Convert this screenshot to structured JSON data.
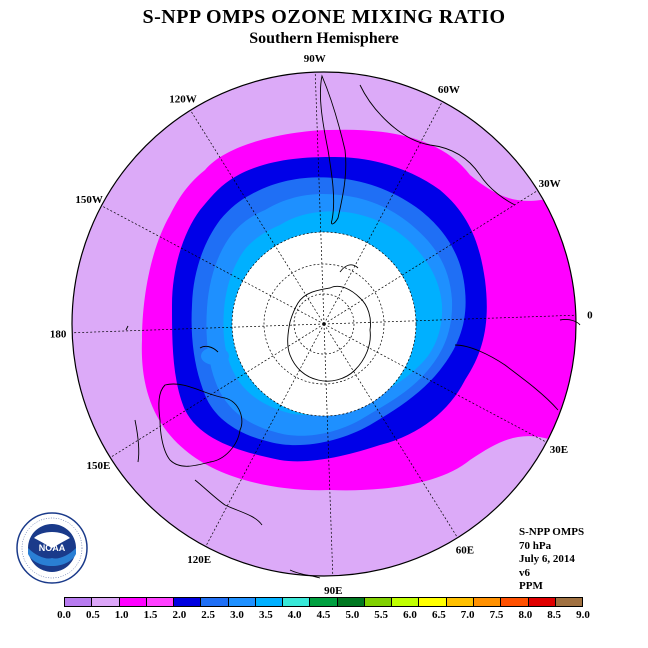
{
  "title": "S-NPP OMPS OZONE MIXING RATIO",
  "subtitle": "Southern Hemisphere",
  "map": {
    "projection": "south-polar-stereographic",
    "longitude_labels": [
      {
        "text": "90W",
        "lon": -90
      },
      {
        "text": "60W",
        "lon": -60
      },
      {
        "text": "30W",
        "lon": -30
      },
      {
        "text": "0",
        "lon": 0
      },
      {
        "text": "30E",
        "lon": 30
      },
      {
        "text": "60E",
        "lon": 60
      },
      {
        "text": "90E",
        "lon": 90
      },
      {
        "text": "120E",
        "lon": 120
      },
      {
        "text": "150E",
        "lon": 150
      },
      {
        "text": "180",
        "lon": 180
      },
      {
        "text": "150W",
        "lon": -150
      },
      {
        "text": "120W",
        "lon": -120
      }
    ]
  },
  "info": {
    "line1": "S-NPP OMPS",
    "line2": "70 hPa",
    "line3": "July 6, 2014",
    "line4": "v6",
    "line5": "PPM"
  },
  "logo": {
    "text": "NOAA",
    "ring_text": "NATIONAL OCEANIC AND ATMOSPHERIC ADMINISTRATION · U.S. DEPARTMENT OF COMMERCE"
  },
  "colorbar": {
    "colors": [
      "#b87cf0",
      "#dca6f8",
      "#ff00ff",
      "#ff40ff",
      "#0000e0",
      "#1f6ff5",
      "#1e90ff",
      "#00b0ff",
      "#38e8d8",
      "#00a040",
      "#007820",
      "#80d000",
      "#c0ff00",
      "#ffff00",
      "#ffc000",
      "#ff9000",
      "#ff5000",
      "#e00000",
      "#a07040"
    ],
    "ticks": [
      "0.0",
      "0.5",
      "1.0",
      "1.5",
      "2.0",
      "2.5",
      "3.0",
      "3.5",
      "4.0",
      "4.5",
      "5.0",
      "5.5",
      "6.0",
      "6.5",
      "7.0",
      "7.5",
      "8.0",
      "8.5",
      "9.0"
    ]
  },
  "field_colors": {
    "outer": "#dcaaf8",
    "magenta": "#ff00ff",
    "dark_blue": "#0000e8",
    "mid_blue": "#1f6ff5",
    "light_blue": "#1e90ff",
    "sky": "#00b0ff"
  }
}
